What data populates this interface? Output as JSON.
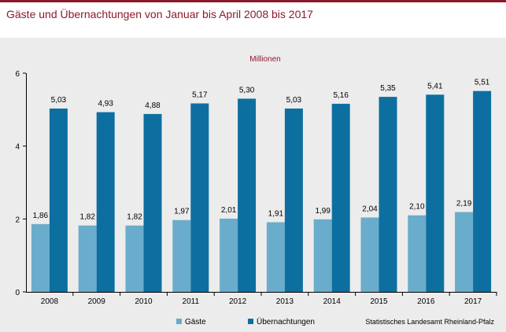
{
  "header": {
    "title": "Gäste und Übernachtungen von Januar bis April 2008 bis 2017"
  },
  "source": "Statistisches Landesamt Rheinland-Pfalz",
  "colors": {
    "accent": "#8b1a2b",
    "gaeste": "#6aaccb",
    "uebernachtungen": "#0d6fa0"
  },
  "chart_data": {
    "type": "bar",
    "ylabel": "Millionen",
    "ylim": [
      0,
      6
    ],
    "yticks": [
      0,
      2,
      4,
      6
    ],
    "categories": [
      "2008",
      "2009",
      "2010",
      "2011",
      "2012",
      "2013",
      "2014",
      "2015",
      "2016",
      "2017"
    ],
    "series": [
      {
        "name": "Gäste",
        "values": [
          1.86,
          1.82,
          1.82,
          1.97,
          2.01,
          1.91,
          1.99,
          2.04,
          2.1,
          2.19
        ],
        "labels": [
          "1,86",
          "1,82",
          "1,82",
          "1,97",
          "2,01",
          "1,91",
          "1,99",
          "2,04",
          "2,10",
          "2,19"
        ]
      },
      {
        "name": "Übernachtungen",
        "values": [
          5.03,
          4.93,
          4.88,
          5.17,
          5.3,
          5.03,
          5.16,
          5.35,
          5.41,
          5.51
        ],
        "labels": [
          "5,03",
          "4,93",
          "4,88",
          "5,17",
          "5,30",
          "5,03",
          "5,16",
          "5,35",
          "5,41",
          "5,51"
        ]
      }
    ],
    "legend_position": "bottom"
  }
}
